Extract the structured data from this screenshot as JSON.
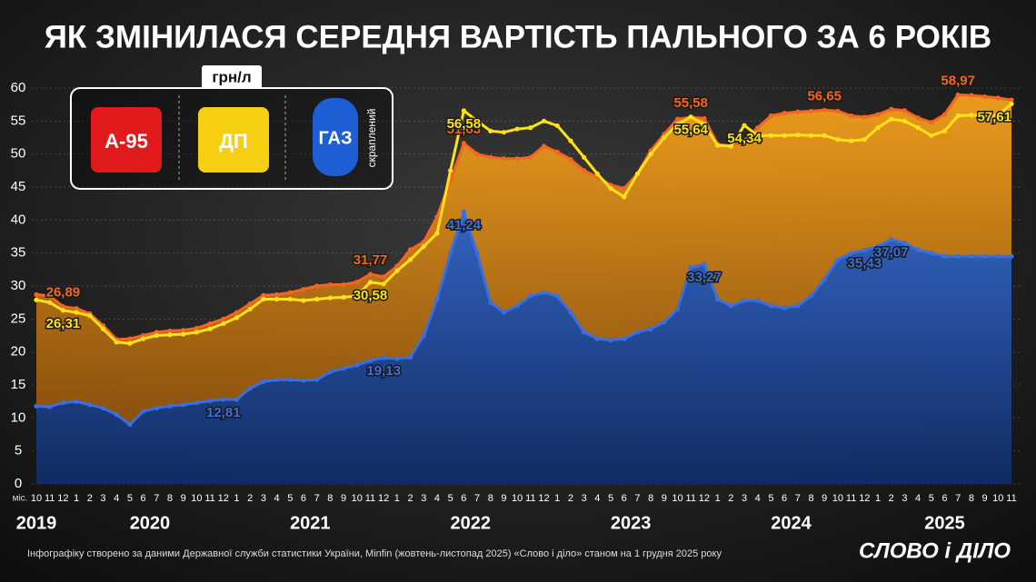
{
  "chart_data": {
    "type": "line",
    "title": "ЯК ЗМІНИЛАСЯ СЕРЕДНЯ ВАРТІСТЬ ПАЛЬНОГО ЗА 6 РОКІВ",
    "unit": "грн/л",
    "x_label": "міс.",
    "categories": [
      "10",
      "11",
      "12",
      "1",
      "2",
      "3",
      "4",
      "5",
      "6",
      "7",
      "8",
      "9",
      "10",
      "11",
      "12",
      "1",
      "2",
      "3",
      "4",
      "5",
      "6",
      "7",
      "8",
      "9",
      "10",
      "11",
      "12",
      "1",
      "2",
      "3",
      "4",
      "5",
      "6",
      "7",
      "8",
      "9",
      "10",
      "11",
      "12",
      "1",
      "2",
      "3",
      "4",
      "5",
      "6",
      "7",
      "8",
      "9",
      "10",
      "11",
      "12",
      "1",
      "2",
      "3",
      "4",
      "5",
      "6",
      "7",
      "8",
      "9",
      "10",
      "11",
      "12",
      "1",
      "2",
      "3",
      "4",
      "5",
      "6",
      "7",
      "8",
      "9",
      "10",
      "11"
    ],
    "years": [
      "2019",
      "2020",
      "2021",
      "2022",
      "2023",
      "2024",
      "2025"
    ],
    "ylim": [
      0,
      60
    ],
    "yticks": [
      0,
      5,
      10,
      15,
      20,
      25,
      30,
      35,
      40,
      45,
      50,
      55,
      60
    ],
    "grid": true,
    "series": [
      {
        "name": "А-95",
        "color": "#f26522",
        "values": [
          28.7,
          28.5,
          26.89,
          26.6,
          25.8,
          24.0,
          21.9,
          22.0,
          22.5,
          23.0,
          23.2,
          23.3,
          23.6,
          24.3,
          25.0,
          26.0,
          27.3,
          28.6,
          28.7,
          29.0,
          29.5,
          30.0,
          30.2,
          30.2,
          30.6,
          31.77,
          31.4,
          33.0,
          35.5,
          36.7,
          40.5,
          46.0,
          51.63,
          50.0,
          49.5,
          49.3,
          49.3,
          49.5,
          51.2,
          50.3,
          49.2,
          47.5,
          46.5,
          45.3,
          44.8,
          47.0,
          50.5,
          53.0,
          55.3,
          55.58,
          55.4,
          51.5,
          51.2,
          52.0,
          54.0,
          55.8,
          56.2,
          56.4,
          56.5,
          56.65,
          56.5,
          55.8,
          55.6,
          56.0,
          56.8,
          56.6,
          55.5,
          54.8,
          56.0,
          58.97,
          58.9,
          58.7,
          58.5,
          58.2
        ],
        "value_labels": [
          null,
          null,
          "26,89",
          null,
          null,
          null,
          null,
          null,
          null,
          null,
          null,
          null,
          null,
          null,
          null,
          null,
          null,
          null,
          null,
          null,
          null,
          null,
          null,
          null,
          null,
          "31,77",
          null,
          null,
          null,
          null,
          null,
          null,
          "51,63",
          null,
          null,
          null,
          null,
          null,
          null,
          null,
          null,
          null,
          null,
          null,
          null,
          null,
          null,
          null,
          null,
          "55,58",
          null,
          null,
          null,
          null,
          null,
          null,
          null,
          null,
          null,
          "56,65",
          null,
          null,
          null,
          null,
          null,
          null,
          null,
          null,
          null,
          "58,97",
          null,
          null,
          null,
          null
        ]
      },
      {
        "name": "ДП",
        "color": "#ffe11a",
        "values": [
          27.9,
          27.5,
          26.31,
          26.0,
          25.5,
          23.5,
          21.5,
          21.3,
          22.0,
          22.5,
          22.6,
          22.7,
          23.0,
          23.5,
          24.3,
          25.2,
          26.5,
          28.0,
          28.0,
          28.0,
          27.8,
          28.0,
          28.2,
          28.3,
          28.5,
          30.58,
          30.3,
          32.3,
          34.0,
          36.0,
          38.0,
          47.5,
          56.58,
          55.0,
          53.5,
          53.3,
          53.8,
          54.0,
          55.0,
          54.3,
          52.0,
          49.5,
          47.0,
          44.8,
          43.5,
          47.0,
          50.0,
          52.5,
          54.5,
          55.64,
          54.5,
          51.3,
          51.2,
          54.34,
          52.8,
          52.8,
          52.8,
          52.9,
          52.8,
          52.8,
          52.2,
          52.0,
          52.2,
          54.0,
          55.3,
          55.0,
          54.0,
          52.8,
          53.5,
          55.8,
          55.9,
          55.8,
          55.9,
          57.61
        ],
        "value_labels": [
          null,
          null,
          "26,31",
          null,
          null,
          null,
          null,
          null,
          null,
          null,
          null,
          null,
          null,
          null,
          null,
          null,
          null,
          null,
          null,
          null,
          null,
          null,
          null,
          null,
          null,
          "30,58",
          null,
          null,
          null,
          null,
          null,
          null,
          "56,58",
          null,
          null,
          null,
          null,
          null,
          null,
          null,
          null,
          null,
          null,
          null,
          null,
          null,
          null,
          null,
          null,
          "55,64",
          null,
          null,
          null,
          "54,34",
          null,
          null,
          null,
          null,
          null,
          null,
          null,
          null,
          null,
          null,
          null,
          null,
          null,
          null,
          null,
          null,
          null,
          null,
          null,
          "57,61"
        ]
      },
      {
        "name": "ГАЗ",
        "note": "скраплений",
        "color": "#3b6fe0",
        "values": [
          11.8,
          11.7,
          12.3,
          12.5,
          12.0,
          11.5,
          10.5,
          9.0,
          11.0,
          11.5,
          11.8,
          12.0,
          12.3,
          12.6,
          12.81,
          12.8,
          14.5,
          15.5,
          15.8,
          15.8,
          15.7,
          15.8,
          17.0,
          17.5,
          18.0,
          18.7,
          19.13,
          19.0,
          19.2,
          22.5,
          28.0,
          35.0,
          41.24,
          35.0,
          27.5,
          26.0,
          27.0,
          28.5,
          29.0,
          28.5,
          26.0,
          23.0,
          22.0,
          21.8,
          22.0,
          23.0,
          23.5,
          24.5,
          26.5,
          32.8,
          33.27,
          28.0,
          27.0,
          27.8,
          27.8,
          27.0,
          26.7,
          27.0,
          28.5,
          31.0,
          34.0,
          35.0,
          35.43,
          36.0,
          37.07,
          36.5,
          35.5,
          35.0,
          34.5,
          34.5,
          34.5,
          34.5,
          34.5,
          34.5
        ],
        "value_labels": [
          null,
          null,
          null,
          null,
          null,
          null,
          null,
          null,
          null,
          null,
          null,
          null,
          null,
          null,
          "12,81",
          null,
          null,
          null,
          null,
          null,
          null,
          null,
          null,
          null,
          null,
          null,
          "19,13",
          null,
          null,
          null,
          null,
          null,
          "41,24",
          null,
          null,
          null,
          null,
          null,
          null,
          null,
          null,
          null,
          null,
          null,
          null,
          null,
          null,
          null,
          null,
          null,
          "33,27",
          null,
          null,
          null,
          null,
          null,
          null,
          null,
          null,
          null,
          null,
          null,
          "35,43",
          null,
          "37,07",
          null,
          null,
          null,
          null,
          null,
          null,
          null,
          null,
          null
        ]
      }
    ],
    "source": "Інфографіку створено за даними Державної служби статистики України, Minfin (жовтень-листопад 2025) «Слово і діло» станом на 1 грудня 2025 року",
    "logo": "СЛОВО і ДІЛО"
  }
}
